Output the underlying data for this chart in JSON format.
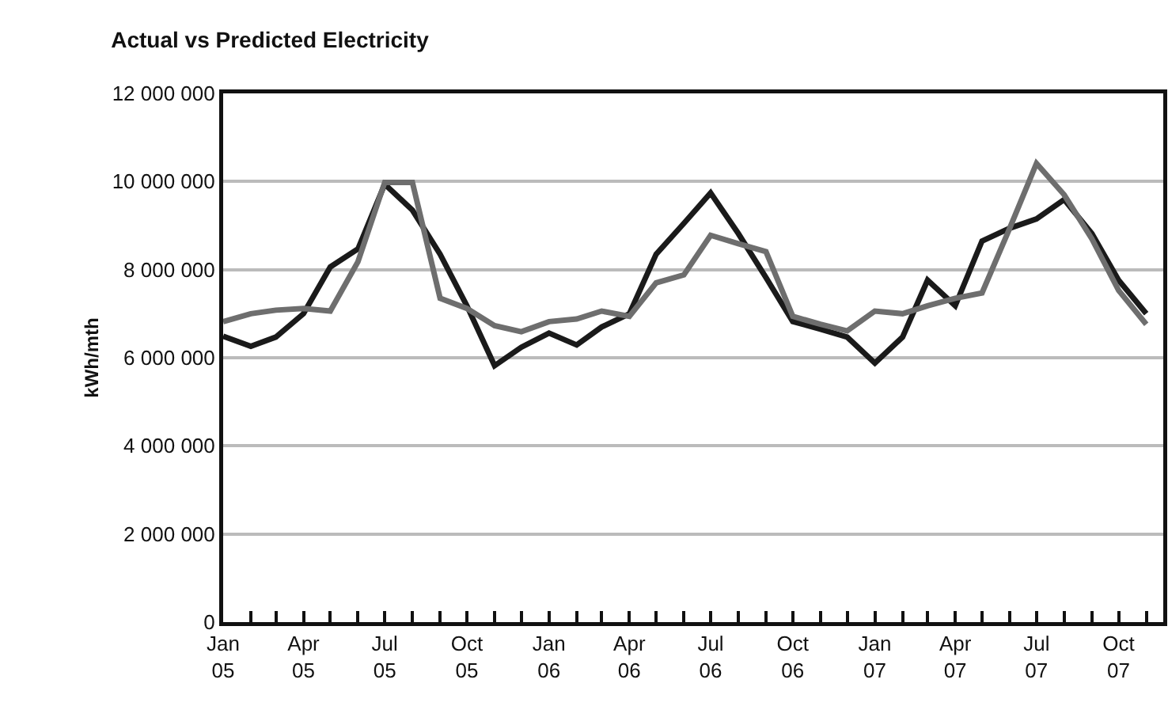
{
  "chart_data": {
    "type": "line",
    "title": "Actual vs Predicted Electricity",
    "ylabel": "kWh/mth",
    "x": [
      "2005-01",
      "2005-02",
      "2005-03",
      "2005-04",
      "2005-05",
      "2005-06",
      "2005-07",
      "2005-08",
      "2005-09",
      "2005-10",
      "2005-11",
      "2005-12",
      "2006-01",
      "2006-02",
      "2006-03",
      "2006-04",
      "2006-05",
      "2006-06",
      "2006-07",
      "2006-08",
      "2006-09",
      "2006-10",
      "2006-11",
      "2006-12",
      "2007-01",
      "2007-02",
      "2007-03",
      "2007-04",
      "2007-05",
      "2007-06",
      "2007-07",
      "2007-08",
      "2007-09",
      "2007-10",
      "2007-11"
    ],
    "series": [
      {
        "color": "#1a1a1a",
        "values": [
          6490000,
          6260000,
          6470000,
          7000000,
          8060000,
          8470000,
          9940000,
          9350000,
          8350000,
          7180000,
          5820000,
          6240000,
          6560000,
          6290000,
          6700000,
          7000000,
          8350000,
          9050000,
          9740000,
          8820000,
          7820000,
          6820000,
          6650000,
          6470000,
          5880000,
          6470000,
          7760000,
          7180000,
          8650000,
          8940000,
          9150000,
          9590000,
          8820000,
          7760000,
          7000000
        ]
      },
      {
        "color": "#6e6e6e",
        "values": [
          6820000,
          7000000,
          7080000,
          7120000,
          7060000,
          8180000,
          9980000,
          9980000,
          7350000,
          7120000,
          6730000,
          6590000,
          6820000,
          6880000,
          7060000,
          6940000,
          7700000,
          7880000,
          8780000,
          8590000,
          8410000,
          6940000,
          6760000,
          6610000,
          7060000,
          7000000,
          7180000,
          7350000,
          7470000,
          8940000,
          10410000,
          9700000,
          8700000,
          7530000,
          6760000
        ]
      }
    ],
    "xlim": [
      "2005-01",
      "2007-11-20"
    ],
    "xticks": [
      {
        "value": "2005-01",
        "label": "Jan\n05"
      },
      {
        "value": "2005-02",
        "label": null
      },
      {
        "value": "2005-03",
        "label": null
      },
      {
        "value": "2005-04",
        "label": "Apr\n05"
      },
      {
        "value": "2005-05",
        "label": null
      },
      {
        "value": "2005-06",
        "label": null
      },
      {
        "value": "2005-07",
        "label": "Jul\n05"
      },
      {
        "value": "2005-08",
        "label": null
      },
      {
        "value": "2005-09",
        "label": null
      },
      {
        "value": "2005-10",
        "label": "Oct\n05"
      },
      {
        "value": "2005-11",
        "label": null
      },
      {
        "value": "2005-12",
        "label": null
      },
      {
        "value": "2006-01",
        "label": "Jan\n06"
      },
      {
        "value": "2006-02",
        "label": null
      },
      {
        "value": "2006-03",
        "label": null
      },
      {
        "value": "2006-04",
        "label": "Apr\n06"
      },
      {
        "value": "2006-05",
        "label": null
      },
      {
        "value": "2006-06",
        "label": null
      },
      {
        "value": "2006-07",
        "label": "Jul\n06"
      },
      {
        "value": "2006-08",
        "label": null
      },
      {
        "value": "2006-09",
        "label": null
      },
      {
        "value": "2006-10",
        "label": "Oct\n06"
      },
      {
        "value": "2006-11",
        "label": null
      },
      {
        "value": "2006-12",
        "label": null
      },
      {
        "value": "2007-01",
        "label": "Jan\n07"
      },
      {
        "value": "2007-02",
        "label": null
      },
      {
        "value": "2007-03",
        "label": null
      },
      {
        "value": "2007-04",
        "label": "Apr\n07"
      },
      {
        "value": "2007-05",
        "label": null
      },
      {
        "value": "2007-06",
        "label": null
      },
      {
        "value": "2007-07",
        "label": "Jul\n07"
      },
      {
        "value": "2007-08",
        "label": null
      },
      {
        "value": "2007-09",
        "label": null
      },
      {
        "value": "2007-10",
        "label": "Oct\n07"
      },
      {
        "value": "2007-11",
        "label": null
      }
    ],
    "ylim": [
      0,
      12000000
    ],
    "yticks": [
      {
        "value": 0,
        "label": "0"
      },
      {
        "value": 2000000,
        "label": "2 000 000"
      },
      {
        "value": 4000000,
        "label": "4 000 000"
      },
      {
        "value": 6000000,
        "label": "6 000 000"
      },
      {
        "value": 8000000,
        "label": "8 000 000"
      },
      {
        "value": 10000000,
        "label": "10 000 000"
      },
      {
        "value": 12000000,
        "label": "12 000 000"
      }
    ],
    "grid": "y",
    "marker": "none",
    "line_style": "solid"
  }
}
